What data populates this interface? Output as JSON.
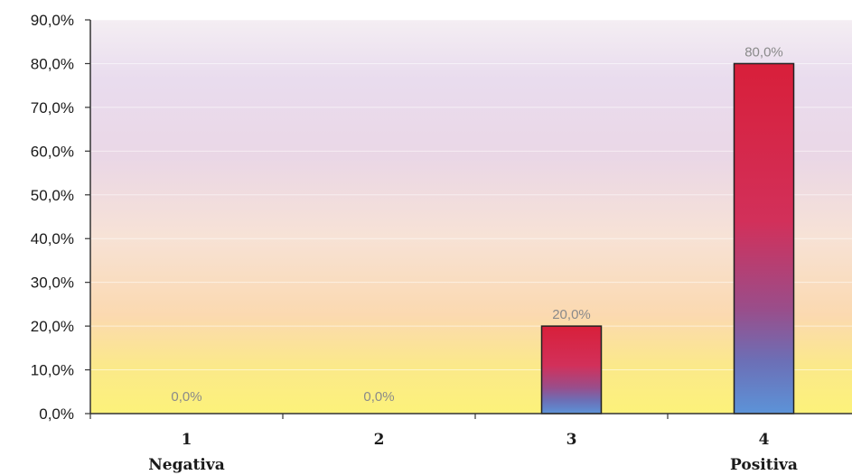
{
  "chart_data": {
    "type": "bar",
    "categories": [
      "1",
      "2",
      "3",
      "4"
    ],
    "category_sublabels": [
      "Negativa",
      "",
      "",
      "Positiva"
    ],
    "values": [
      0.0,
      0.0,
      20.0,
      80.0
    ],
    "data_labels": [
      "0,0%",
      "0,0%",
      "20,0%",
      "80,0%"
    ],
    "ylim": [
      0,
      90
    ],
    "yticks": [
      "0,0%",
      "10,0%",
      "20,0%",
      "30,0%",
      "40,0%",
      "50,0%",
      "60,0%",
      "70,0%",
      "80,0%",
      "90,0%"
    ],
    "grid": true,
    "colors": {
      "bar_top": "#d8213f",
      "bar_mid": "#c84a78",
      "bar_bottom": "#5b8fd6",
      "bg_top": "#e6d9ec",
      "bg_mid": "#f7e3d4",
      "bg_bottom": "#fbf08a",
      "axis": "#333333"
    }
  }
}
